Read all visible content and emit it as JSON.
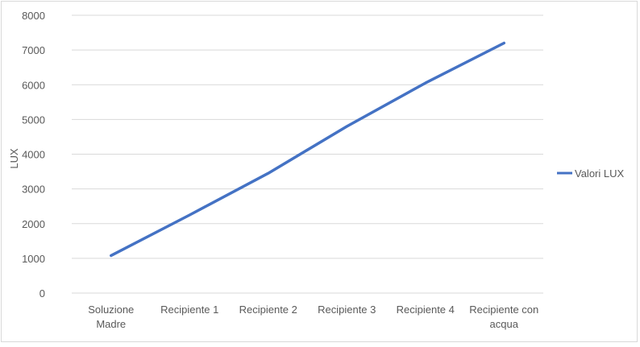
{
  "chart_data": {
    "type": "line",
    "categories": [
      "Soluzione Madre",
      "Recipiente 1",
      "Recipiente 2",
      "Recipiente 3",
      "Recipiente 4",
      "Recipiente con acqua"
    ],
    "category_lines": [
      [
        "Soluzione",
        "Madre"
      ],
      [
        "Recipiente 1"
      ],
      [
        "Recipiente 2"
      ],
      [
        "Recipiente 3"
      ],
      [
        "Recipiente 4"
      ],
      [
        "Recipiente con",
        "acqua"
      ]
    ],
    "series": [
      {
        "name": "Valori LUX",
        "values": [
          1080,
          2250,
          3450,
          4800,
          6050,
          7200
        ],
        "color": "#4472c4"
      }
    ],
    "ylabel": "LUX",
    "xlabel": "",
    "title": "",
    "ylim": [
      0,
      8000
    ],
    "yticks": [
      0,
      1000,
      2000,
      3000,
      4000,
      5000,
      6000,
      7000,
      8000
    ],
    "grid": true,
    "legend_position": "right",
    "colors": {
      "grid": "#d9d9d9",
      "text": "#595959",
      "series": "#4472c4"
    }
  }
}
